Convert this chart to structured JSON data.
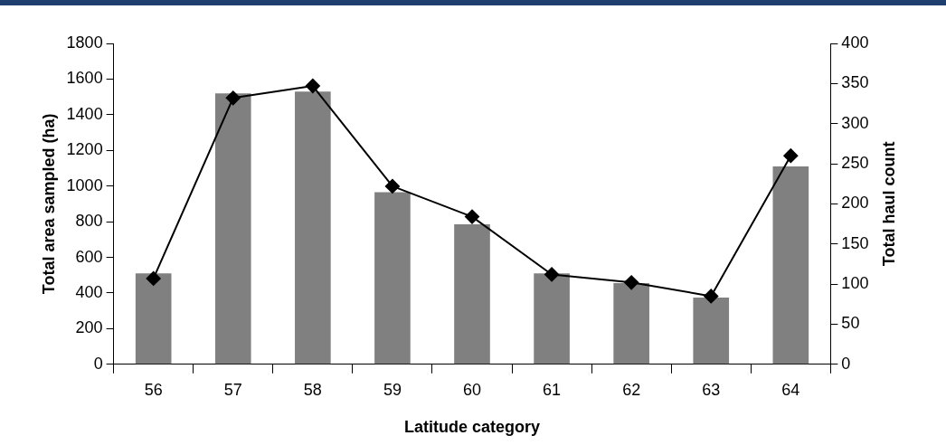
{
  "chart_data": {
    "type": "bar",
    "xlabel": "Latitude category",
    "ylabel": "Total area sampled (ha)",
    "y2label": "Total haul count",
    "categories": [
      "56",
      "57",
      "58",
      "59",
      "60",
      "61",
      "62",
      "63",
      "64"
    ],
    "series": [
      {
        "color": "#808080",
        "values": [
          510,
          1520,
          1530,
          965,
          785,
          510,
          455,
          375,
          1110
        ]
      },
      {
        "type": "line",
        "axis": "y2",
        "color": "#000000",
        "marker": "diamond",
        "line_style": "solid",
        "values": [
          107,
          332,
          347,
          222,
          184,
          112,
          102,
          85,
          260
        ]
      }
    ],
    "ylim": [
      0,
      1800
    ],
    "yticks": [
      0,
      200,
      400,
      600,
      800,
      1000,
      1200,
      1400,
      1600,
      1800
    ],
    "y2lim": [
      0,
      400
    ],
    "y2ticks": [
      0,
      50,
      100,
      150,
      200,
      250,
      300,
      350,
      400
    ],
    "grid": false,
    "legend": false
  }
}
